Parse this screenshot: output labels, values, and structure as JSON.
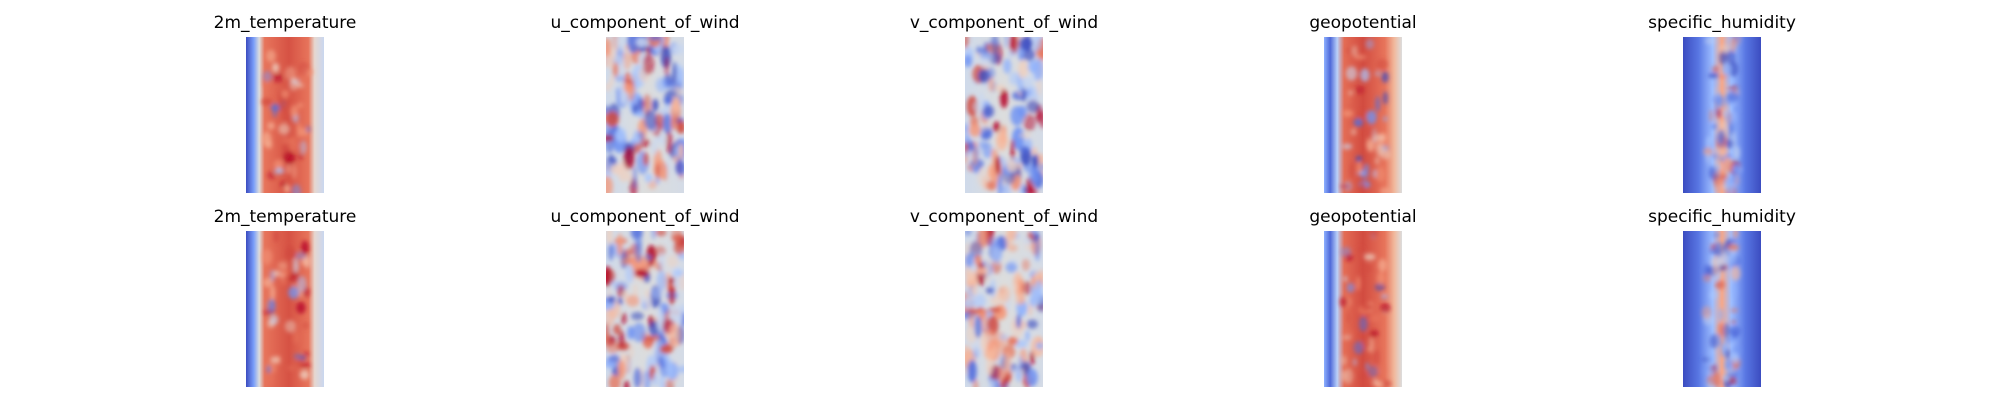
{
  "chart_data": {
    "type": "heatmap",
    "colormap": "coolwarm",
    "axes": "off",
    "rows": 2,
    "columns": 5,
    "panels": [
      {
        "title": "2m_temperature",
        "pattern": "temperature"
      },
      {
        "title": "u_component_of_wind",
        "pattern": "wind"
      },
      {
        "title": "v_component_of_wind",
        "pattern": "wind"
      },
      {
        "title": "geopotential",
        "pattern": "geopotential"
      },
      {
        "title": "specific_humidity",
        "pattern": "humidity"
      },
      {
        "title": "2m_temperature",
        "pattern": "temperature"
      },
      {
        "title": "u_component_of_wind",
        "pattern": "wind"
      },
      {
        "title": "v_component_of_wind",
        "pattern": "wind"
      },
      {
        "title": "geopotential",
        "pattern": "geopotential"
      },
      {
        "title": "specific_humidity",
        "pattern": "humidity"
      }
    ]
  }
}
